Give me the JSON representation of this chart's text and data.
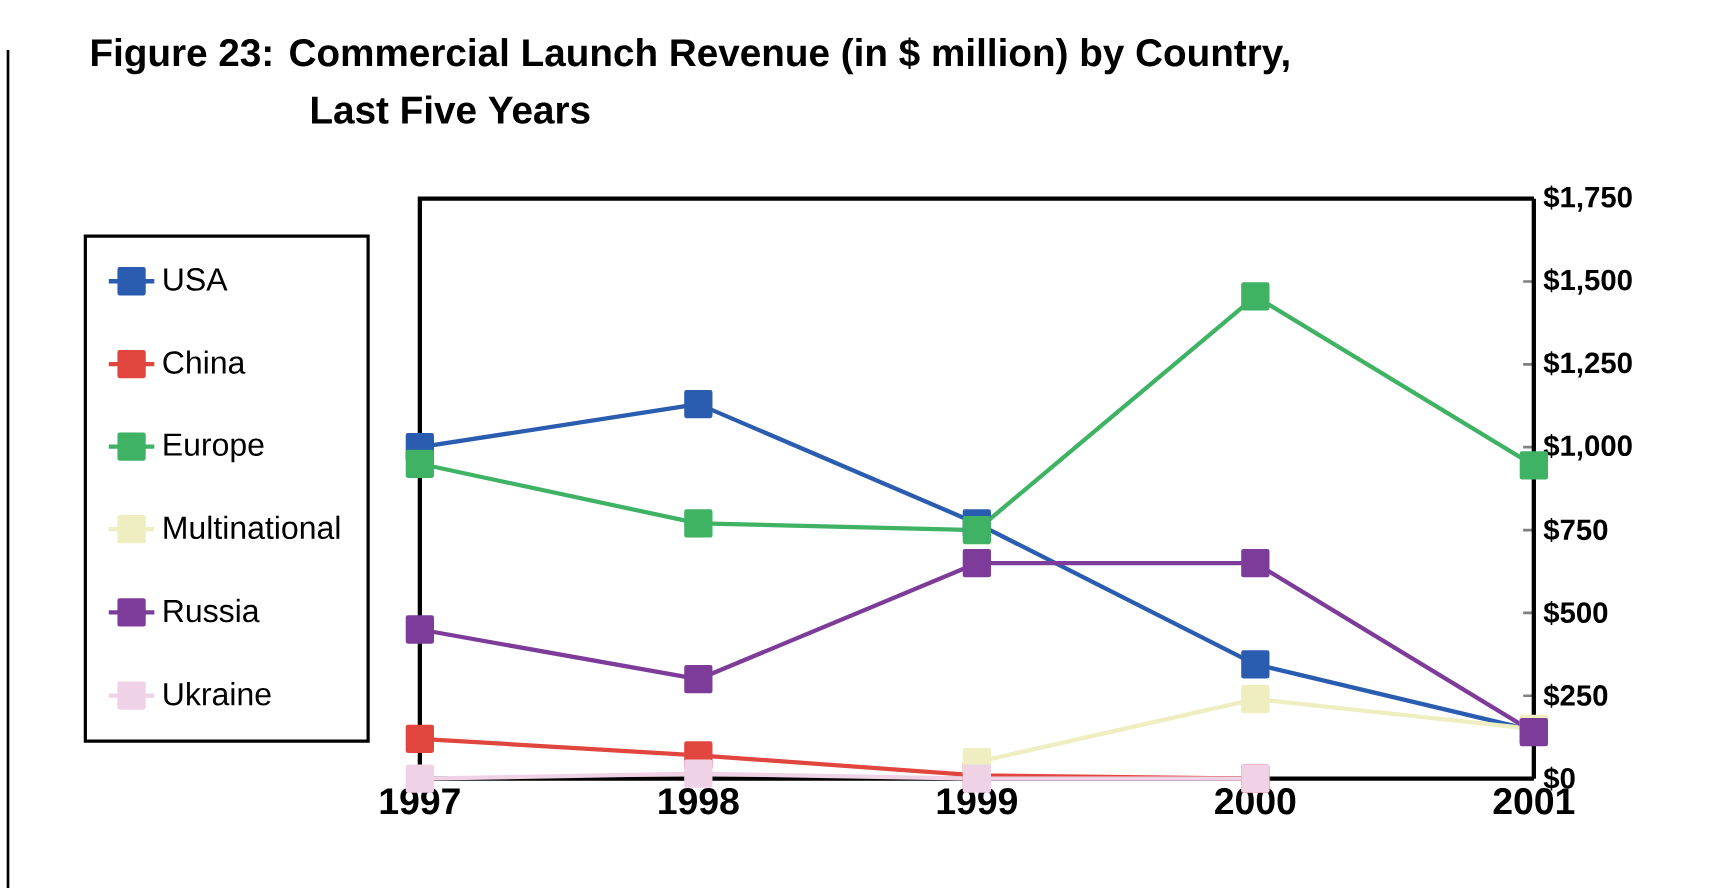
{
  "chart_data": {
    "type": "line",
    "title": "Figure 23: Commercial Launch Revenue (in $ million) by Country,",
    "subtitle": "Last Five Years",
    "categories": [
      "1997",
      "1998",
      "1999",
      "2000",
      "2001"
    ],
    "series": [
      {
        "name": "USA",
        "color": "#2a5cb0",
        "values": [
          1000,
          1130,
          770,
          345,
          145
        ]
      },
      {
        "name": "China",
        "color": "#e0463e",
        "values": [
          120,
          70,
          10,
          0,
          null
        ]
      },
      {
        "name": "Europe",
        "color": "#3fb264",
        "values": [
          950,
          770,
          750,
          1455,
          945
        ]
      },
      {
        "name": "Multinational",
        "color": "#eeeec0",
        "values": [
          null,
          null,
          50,
          240,
          150
        ]
      },
      {
        "name": "Russia",
        "color": "#7d3c9a",
        "values": [
          450,
          300,
          650,
          650,
          140
        ]
      },
      {
        "name": "Ukraine",
        "color": "#f0d2e6",
        "values": [
          0,
          15,
          0,
          0,
          null
        ]
      }
    ],
    "ylim": [
      0,
      1750
    ],
    "yticks": [
      {
        "value": 0,
        "label": "$0"
      },
      {
        "value": 250,
        "label": "$250"
      },
      {
        "value": 500,
        "label": "$500"
      },
      {
        "value": 750,
        "label": "$750"
      },
      {
        "value": 1000,
        "label": "$1,000"
      },
      {
        "value": 1250,
        "label": "$1,250"
      },
      {
        "value": 1500,
        "label": "$1,500"
      },
      {
        "value": 1750,
        "label": "$1,750"
      }
    ],
    "legend": "left",
    "marker": "square",
    "grid": false
  }
}
